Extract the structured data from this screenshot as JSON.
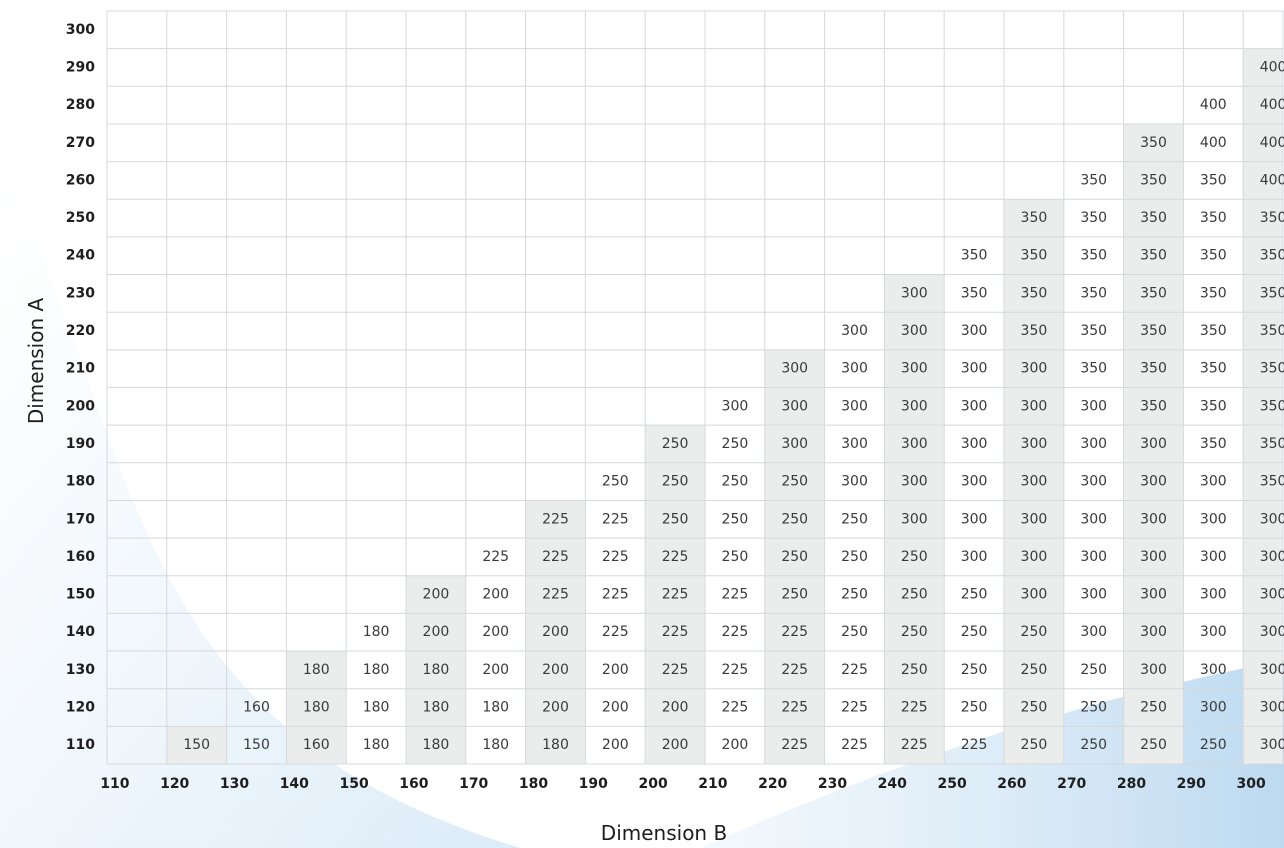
{
  "chart_data": {
    "type": "table",
    "xlabel": "Dimension B",
    "ylabel": "Dimension A",
    "x_categories": [
      110,
      120,
      130,
      140,
      150,
      160,
      170,
      180,
      190,
      200,
      210,
      220,
      230,
      240,
      250,
      260,
      270,
      280,
      290,
      300
    ],
    "y_categories": [
      300,
      290,
      280,
      270,
      260,
      250,
      240,
      230,
      220,
      210,
      200,
      190,
      180,
      170,
      160,
      150,
      140,
      130,
      120,
      110
    ],
    "shaded_columns": [
      120,
      140,
      160,
      180,
      200,
      220,
      240,
      260,
      280,
      300
    ],
    "cells": [
      [
        null,
        null,
        null,
        null,
        null,
        null,
        null,
        null,
        null,
        null,
        null,
        null,
        null,
        null,
        null,
        null,
        null,
        null,
        null,
        null
      ],
      [
        null,
        null,
        null,
        null,
        null,
        null,
        null,
        null,
        null,
        null,
        null,
        null,
        null,
        null,
        null,
        null,
        null,
        null,
        null,
        400
      ],
      [
        null,
        null,
        null,
        null,
        null,
        null,
        null,
        null,
        null,
        null,
        null,
        null,
        null,
        null,
        null,
        null,
        null,
        null,
        400,
        400
      ],
      [
        null,
        null,
        null,
        null,
        null,
        null,
        null,
        null,
        null,
        null,
        null,
        null,
        null,
        null,
        null,
        null,
        null,
        350,
        400,
        400
      ],
      [
        null,
        null,
        null,
        null,
        null,
        null,
        null,
        null,
        null,
        null,
        null,
        null,
        null,
        null,
        null,
        null,
        350,
        350,
        350,
        400
      ],
      [
        null,
        null,
        null,
        null,
        null,
        null,
        null,
        null,
        null,
        null,
        null,
        null,
        null,
        null,
        null,
        350,
        350,
        350,
        350,
        350
      ],
      [
        null,
        null,
        null,
        null,
        null,
        null,
        null,
        null,
        null,
        null,
        null,
        null,
        null,
        null,
        350,
        350,
        350,
        350,
        350,
        350
      ],
      [
        null,
        null,
        null,
        null,
        null,
        null,
        null,
        null,
        null,
        null,
        null,
        null,
        null,
        300,
        350,
        350,
        350,
        350,
        350,
        350
      ],
      [
        null,
        null,
        null,
        null,
        null,
        null,
        null,
        null,
        null,
        null,
        null,
        null,
        300,
        300,
        300,
        350,
        350,
        350,
        350,
        350
      ],
      [
        null,
        null,
        null,
        null,
        null,
        null,
        null,
        null,
        null,
        null,
        null,
        300,
        300,
        300,
        300,
        300,
        350,
        350,
        350,
        350
      ],
      [
        null,
        null,
        null,
        null,
        null,
        null,
        null,
        null,
        null,
        null,
        300,
        300,
        300,
        300,
        300,
        300,
        300,
        350,
        350,
        350
      ],
      [
        null,
        null,
        null,
        null,
        null,
        null,
        null,
        null,
        null,
        250,
        250,
        300,
        300,
        300,
        300,
        300,
        300,
        300,
        350,
        350
      ],
      [
        null,
        null,
        null,
        null,
        null,
        null,
        null,
        null,
        250,
        250,
        250,
        250,
        300,
        300,
        300,
        300,
        300,
        300,
        300,
        350
      ],
      [
        null,
        null,
        null,
        null,
        null,
        null,
        null,
        225,
        225,
        250,
        250,
        250,
        250,
        300,
        300,
        300,
        300,
        300,
        300,
        300
      ],
      [
        null,
        null,
        null,
        null,
        null,
        null,
        225,
        225,
        225,
        225,
        250,
        250,
        250,
        250,
        300,
        300,
        300,
        300,
        300,
        300
      ],
      [
        null,
        null,
        null,
        null,
        null,
        200,
        200,
        225,
        225,
        225,
        225,
        250,
        250,
        250,
        250,
        300,
        300,
        300,
        300,
        300
      ],
      [
        null,
        null,
        null,
        null,
        180,
        200,
        200,
        200,
        225,
        225,
        225,
        225,
        250,
        250,
        250,
        250,
        300,
        300,
        300,
        300
      ],
      [
        null,
        null,
        null,
        180,
        180,
        180,
        200,
        200,
        200,
        225,
        225,
        225,
        225,
        250,
        250,
        250,
        250,
        300,
        300,
        300
      ],
      [
        null,
        null,
        160,
        180,
        180,
        180,
        180,
        200,
        200,
        200,
        225,
        225,
        225,
        225,
        250,
        250,
        250,
        250,
        300,
        300
      ],
      [
        null,
        150,
        150,
        160,
        180,
        180,
        180,
        180,
        200,
        200,
        200,
        225,
        225,
        225,
        225,
        250,
        250,
        250,
        250,
        300
      ]
    ]
  }
}
